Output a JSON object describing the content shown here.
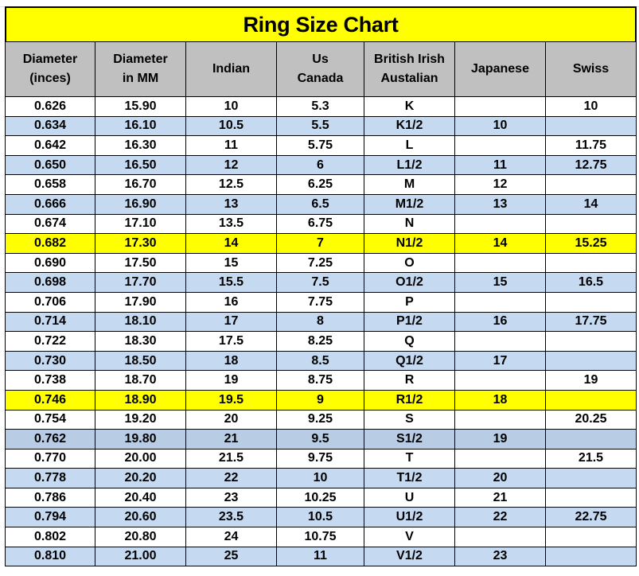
{
  "title": "Ring Size Chart",
  "colors": {
    "title_bg": "#ffff00",
    "header_bg": "#c0c0c0",
    "row_white": "#ffffff",
    "row_blue": "#c5d9f1",
    "row_blue_dark": "#b8cce4",
    "row_yellow": "#ffff00"
  },
  "headers": [
    "Diameter\n(inces)",
    "Diameter\nin MM",
    "Indian",
    "Us\nCanada",
    "British Irish\nAustalian",
    "Japanese",
    "Swiss"
  ],
  "rows": [
    {
      "fill": "row_white",
      "cells": [
        "0.626",
        "15.90",
        "10",
        "5.3",
        "K",
        "",
        "10"
      ]
    },
    {
      "fill": "row_blue",
      "cells": [
        "0.634",
        "16.10",
        "10.5",
        "5.5",
        "K1/2",
        "10",
        ""
      ]
    },
    {
      "fill": "row_white",
      "cells": [
        "0.642",
        "16.30",
        "11",
        "5.75",
        "L",
        "",
        "11.75"
      ]
    },
    {
      "fill": "row_blue",
      "cells": [
        "0.650",
        "16.50",
        "12",
        "6",
        "L1/2",
        "11",
        "12.75"
      ]
    },
    {
      "fill": "row_white",
      "cells": [
        "0.658",
        "16.70",
        "12.5",
        "6.25",
        "M",
        "12",
        ""
      ]
    },
    {
      "fill": "row_blue",
      "cells": [
        "0.666",
        "16.90",
        "13",
        "6.5",
        "M1/2",
        "13",
        "14"
      ]
    },
    {
      "fill": "row_white",
      "cells": [
        "0.674",
        "17.10",
        "13.5",
        "6.75",
        "N",
        "",
        ""
      ]
    },
    {
      "fill": "row_yellow",
      "cells": [
        "0.682",
        "17.30",
        "14",
        "7",
        "N1/2",
        "14",
        "15.25"
      ]
    },
    {
      "fill": "row_white",
      "cells": [
        "0.690",
        "17.50",
        "15",
        "7.25",
        "O",
        "",
        ""
      ]
    },
    {
      "fill": "row_blue",
      "cells": [
        "0.698",
        "17.70",
        "15.5",
        "7.5",
        "O1/2",
        "15",
        "16.5"
      ]
    },
    {
      "fill": "row_white",
      "cells": [
        "0.706",
        "17.90",
        "16",
        "7.75",
        "P",
        "",
        ""
      ]
    },
    {
      "fill": "row_blue",
      "cells": [
        "0.714",
        "18.10",
        "17",
        "8",
        "P1/2",
        "16",
        "17.75"
      ]
    },
    {
      "fill": "row_white",
      "cells": [
        "0.722",
        "18.30",
        "17.5",
        "8.25",
        "Q",
        "",
        ""
      ]
    },
    {
      "fill": "row_blue",
      "cells": [
        "0.730",
        "18.50",
        "18",
        "8.5",
        "Q1/2",
        "17",
        ""
      ]
    },
    {
      "fill": "row_white",
      "cells": [
        "0.738",
        "18.70",
        "19",
        "8.75",
        "R",
        "",
        "19"
      ]
    },
    {
      "fill": "row_yellow",
      "cells": [
        "0.746",
        "18.90",
        "19.5",
        "9",
        "R1/2",
        "18",
        ""
      ]
    },
    {
      "fill": "row_white",
      "cells": [
        "0.754",
        "19.20",
        "20",
        "9.25",
        "S",
        "",
        "20.25"
      ]
    },
    {
      "fill": "row_blue_dark",
      "cells": [
        "0.762",
        "19.80",
        "21",
        "9.5",
        "S1/2",
        "19",
        ""
      ]
    },
    {
      "fill": "row_white",
      "cells": [
        "0.770",
        "20.00",
        "21.5",
        "9.75",
        "T",
        "",
        "21.5"
      ]
    },
    {
      "fill": "row_blue",
      "cells": [
        "0.778",
        "20.20",
        "22",
        "10",
        "T1/2",
        "20",
        ""
      ]
    },
    {
      "fill": "row_white",
      "cells": [
        "0.786",
        "20.40",
        "23",
        "10.25",
        "U",
        "21",
        ""
      ]
    },
    {
      "fill": "row_blue",
      "cells": [
        "0.794",
        "20.60",
        "23.5",
        "10.5",
        "U1/2",
        "22",
        "22.75"
      ]
    },
    {
      "fill": "row_white",
      "cells": [
        "0.802",
        "20.80",
        "24",
        "10.75",
        "V",
        "",
        ""
      ]
    },
    {
      "fill": "row_blue",
      "cells": [
        "0.810",
        "21.00",
        "25",
        "11",
        "V1/2",
        "23",
        ""
      ]
    }
  ]
}
